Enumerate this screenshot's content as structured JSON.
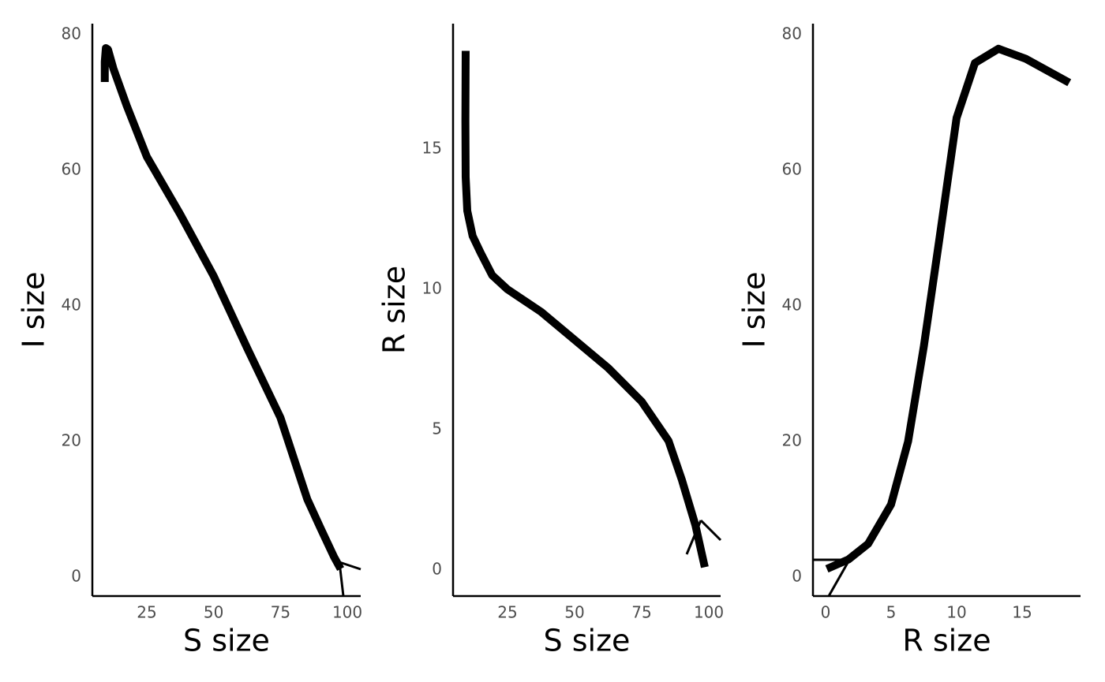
{
  "chart_data": [
    {
      "type": "line",
      "xlabel": "S size",
      "ylabel": "I size",
      "x": [
        97.5,
        95,
        90,
        85,
        75,
        62.5,
        50,
        37.5,
        25,
        17.5,
        12.5,
        10.5,
        9.7,
        9.3,
        9.3
      ],
      "series": [
        {
          "color": "#000000",
          "values": [
            1.2,
            3,
            7.2,
            11.5,
            23.5,
            33.8,
            44.4,
            53.5,
            62,
            69.5,
            75,
            77.8,
            78,
            76,
            73
          ]
        }
      ],
      "xlim": [
        4.65,
        105
      ],
      "ylim": [
        -2.8,
        81.6
      ],
      "xticks": [
        25,
        50,
        75,
        100
      ],
      "yticks": [
        0,
        20,
        40,
        60,
        80
      ]
    },
    {
      "type": "line",
      "xlabel": "S size",
      "ylabel": "R size",
      "x": [
        98.5,
        95,
        90,
        85,
        75,
        62.5,
        50,
        37.5,
        25,
        19.3,
        15,
        12,
        10,
        9.4,
        9.3,
        9.4
      ],
      "series": [
        {
          "color": "#000000",
          "values": [
            0.1,
            1.6,
            3.2,
            4.6,
            6,
            7.2,
            8.2,
            9.2,
            10,
            10.5,
            11.3,
            11.9,
            12.8,
            14,
            16,
            18.5
          ]
        }
      ],
      "xlim": [
        4.7,
        104.4
      ],
      "ylim": [
        -0.93,
        19.47
      ],
      "xticks": [
        25,
        50,
        75,
        100
      ],
      "yticks": [
        0,
        5,
        10,
        15
      ]
    },
    {
      "type": "line",
      "xlabel": "R size",
      "ylabel": "I size",
      "x": [
        0.1,
        1.75,
        3.25,
        5,
        6.3,
        7.5,
        8.7,
        10,
        11.4,
        13.2,
        15.3,
        18.6
      ],
      "series": [
        {
          "color": "#000000",
          "values": [
            1.2,
            2.6,
            4.9,
            10.7,
            20,
            34,
            50,
            67.7,
            75.8,
            77.9,
            76.4,
            72.9
          ]
        }
      ],
      "xlim": [
        -0.96,
        19.46
      ],
      "ylim": [
        -2.8,
        81.6
      ],
      "xticks": [
        0,
        5,
        10,
        15
      ],
      "yticks": [
        0,
        20,
        40,
        60,
        80
      ]
    }
  ]
}
